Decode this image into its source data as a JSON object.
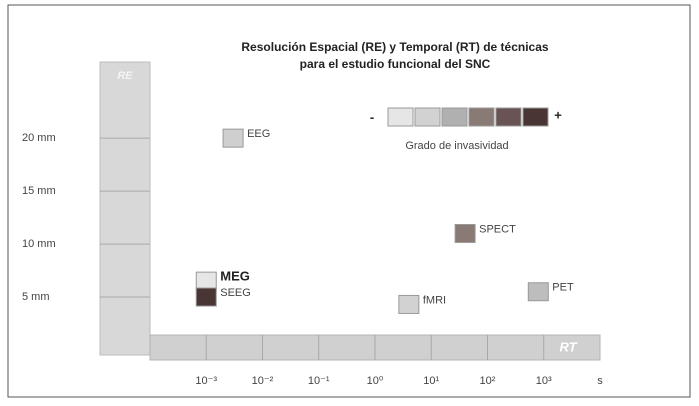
{
  "chart_data": {
    "type": "scatter",
    "title": [
      "Resolución Espacial (RE) y Temporal (RT) de técnicas",
      "para el estudio funcional del SNC"
    ],
    "y_axis_title": "RE",
    "x_axis_title": "RT",
    "x_unit": "s",
    "log_x": true,
    "xlim": [
      0.0001,
      10000
    ],
    "ylim": [
      0,
      27
    ],
    "xticks": [
      {
        "value": 0.001,
        "label": "10⁻³"
      },
      {
        "value": 0.01,
        "label": "10⁻²"
      },
      {
        "value": 0.1,
        "label": "10⁻¹"
      },
      {
        "value": 1,
        "label": "10⁰"
      },
      {
        "value": 10,
        "label": "10¹"
      },
      {
        "value": 100,
        "label": "10²"
      },
      {
        "value": 1000,
        "label": "10³"
      }
    ],
    "yticks": [
      {
        "value": 20,
        "label": "20 mm"
      },
      {
        "value": 15,
        "label": "15 mm"
      },
      {
        "value": 10,
        "label": "10 mm"
      },
      {
        "value": 5,
        "label": "5 mm"
      }
    ],
    "points": [
      {
        "name": "EEG",
        "x": 0.003,
        "y": 20,
        "color": "#cfcfcf"
      },
      {
        "name": "MEG",
        "x": 0.001,
        "y": 6.5,
        "color": "#e6e6e6"
      },
      {
        "name": "SEEG",
        "x": 0.001,
        "y": 5,
        "color": "#4a3535"
      },
      {
        "name": "fMRI",
        "x": 4,
        "y": 4.3,
        "color": "#d2d2d2"
      },
      {
        "name": "SPECT",
        "x": 40,
        "y": 11,
        "color": "#8a7a76"
      },
      {
        "name": "PET",
        "x": 800,
        "y": 5.5,
        "color": "#bdbdbd"
      }
    ],
    "legend": {
      "low": "-",
      "high": "+",
      "label": "Grado de invasividad",
      "colors": [
        "#e6e6e6",
        "#d2d2d2",
        "#b0b0b0",
        "#8a7a76",
        "#6a5353",
        "#4a3535"
      ]
    }
  }
}
